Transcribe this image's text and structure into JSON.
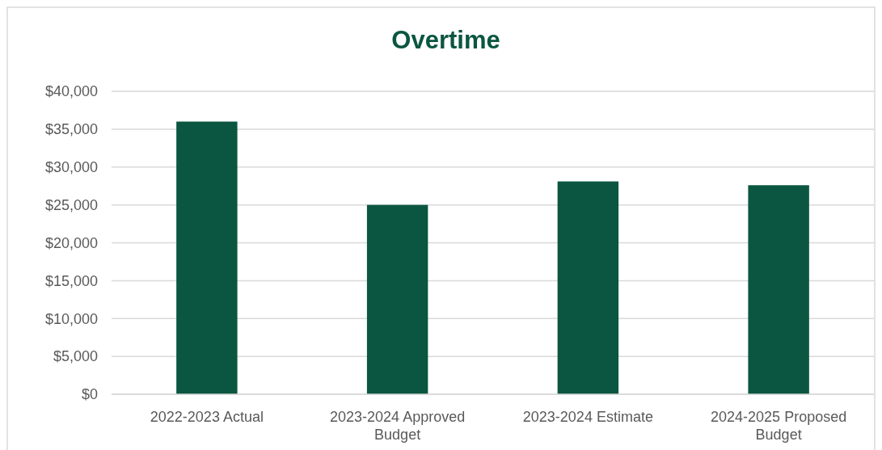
{
  "chart_data": {
    "type": "bar",
    "title": "Overtime",
    "categories": [
      "2022-2023 Actual",
      "2023-2024 Approved Budget",
      "2023-2024 Estimate",
      "2024-2025 Proposed Budget"
    ],
    "values": [
      36000,
      25000,
      28100,
      27600
    ],
    "color": "#0b5640",
    "ylim": [
      0,
      40000
    ],
    "yticks": [
      {
        "value": 0,
        "label": "$0"
      },
      {
        "value": 5000,
        "label": "$5,000"
      },
      {
        "value": 10000,
        "label": "$10,000"
      },
      {
        "value": 15000,
        "label": "$15,000"
      },
      {
        "value": 20000,
        "label": "$20,000"
      },
      {
        "value": 25000,
        "label": "$25,000"
      },
      {
        "value": 30000,
        "label": "$30,000"
      },
      {
        "value": 35000,
        "label": "$35,000"
      },
      {
        "value": 40000,
        "label": "$40,000"
      }
    ],
    "grid": true
  }
}
